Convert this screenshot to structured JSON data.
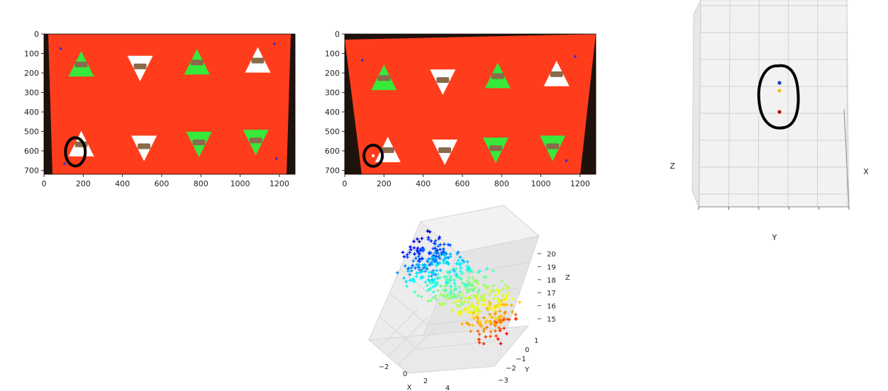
{
  "colors": {
    "background_red": "#ff3d1c",
    "triangle_green": "#38e83a",
    "triangle_white": "#ffffff",
    "frame_dark": "#1f120c",
    "annotation": "#000000",
    "point_blue": "#2f2fd8"
  },
  "chart_data": [
    {
      "type": "image",
      "x_ticks": [
        "0",
        "200",
        "400",
        "600",
        "800",
        "1000",
        "1200"
      ],
      "y_ticks": [
        "0",
        "100",
        "200",
        "300",
        "400",
        "500",
        "600",
        "700"
      ],
      "xlim": [
        0,
        1280
      ],
      "ylim": [
        720,
        0
      ],
      "triangles": [
        {
          "cx": 190,
          "cy": 160,
          "dir": "up",
          "color": "green"
        },
        {
          "cx": 490,
          "cy": 170,
          "dir": "down",
          "color": "white"
        },
        {
          "cx": 780,
          "cy": 150,
          "dir": "up",
          "color": "green"
        },
        {
          "cx": 1090,
          "cy": 140,
          "dir": "up",
          "color": "white"
        },
        {
          "cx": 190,
          "cy": 570,
          "dir": "up",
          "color": "white"
        },
        {
          "cx": 510,
          "cy": 580,
          "dir": "down",
          "color": "white"
        },
        {
          "cx": 790,
          "cy": 560,
          "dir": "down",
          "color": "green"
        },
        {
          "cx": 1080,
          "cy": 550,
          "dir": "down",
          "color": "green"
        }
      ],
      "markers": [
        {
          "x": 85,
          "y": 75
        },
        {
          "x": 1175,
          "y": 50
        },
        {
          "x": 105,
          "y": 665
        },
        {
          "x": 1185,
          "y": 640
        }
      ],
      "annotation": {
        "x": 160,
        "y": 605
      }
    },
    {
      "type": "image",
      "x_ticks": [
        "0",
        "200",
        "400",
        "600",
        "800",
        "1000",
        "1200"
      ],
      "y_ticks": [
        "0",
        "100",
        "200",
        "300",
        "400",
        "500",
        "600",
        "700"
      ],
      "xlim": [
        0,
        1280
      ],
      "ylim": [
        720,
        0
      ],
      "triangles": [
        {
          "cx": 200,
          "cy": 230,
          "dir": "up",
          "color": "green"
        },
        {
          "cx": 500,
          "cy": 240,
          "dir": "down",
          "color": "white"
        },
        {
          "cx": 780,
          "cy": 220,
          "dir": "up",
          "color": "green"
        },
        {
          "cx": 1080,
          "cy": 210,
          "dir": "up",
          "color": "white"
        },
        {
          "cx": 220,
          "cy": 600,
          "dir": "up",
          "color": "white"
        },
        {
          "cx": 510,
          "cy": 600,
          "dir": "down",
          "color": "white"
        },
        {
          "cx": 770,
          "cy": 590,
          "dir": "down",
          "color": "green"
        },
        {
          "cx": 1060,
          "cy": 580,
          "dir": "down",
          "color": "green"
        }
      ],
      "markers": [
        {
          "x": 90,
          "y": 135
        },
        {
          "x": 1175,
          "y": 115
        },
        {
          "x": 1130,
          "y": 650
        }
      ],
      "annotation": {
        "x": 145,
        "y": 625
      }
    },
    {
      "type": "scatter3d",
      "view": "front",
      "axis_labels": {
        "x": "X",
        "y": "Y",
        "z": "Z"
      },
      "points": [
        {
          "color": "#1040c0"
        },
        {
          "color": "#f0c020"
        },
        {
          "color": "#b01010"
        }
      ]
    },
    {
      "type": "scatter3d",
      "view": "perspective",
      "marker": "star",
      "colormap": "jet",
      "axis_labels": {
        "x": "X",
        "y": "Y",
        "z": "Z"
      },
      "x_ticks": [
        "−2",
        "0",
        "2",
        "4"
      ],
      "y_ticks": [
        "−3",
        "−2",
        "−1",
        "0",
        "1"
      ],
      "z_ticks": [
        "15",
        "16",
        "17",
        "18",
        "19",
        "20"
      ],
      "xlim": [
        -3,
        5
      ],
      "ylim": [
        -3.5,
        1.5
      ],
      "zlim": [
        15,
        20.5
      ],
      "grid": true
    }
  ]
}
